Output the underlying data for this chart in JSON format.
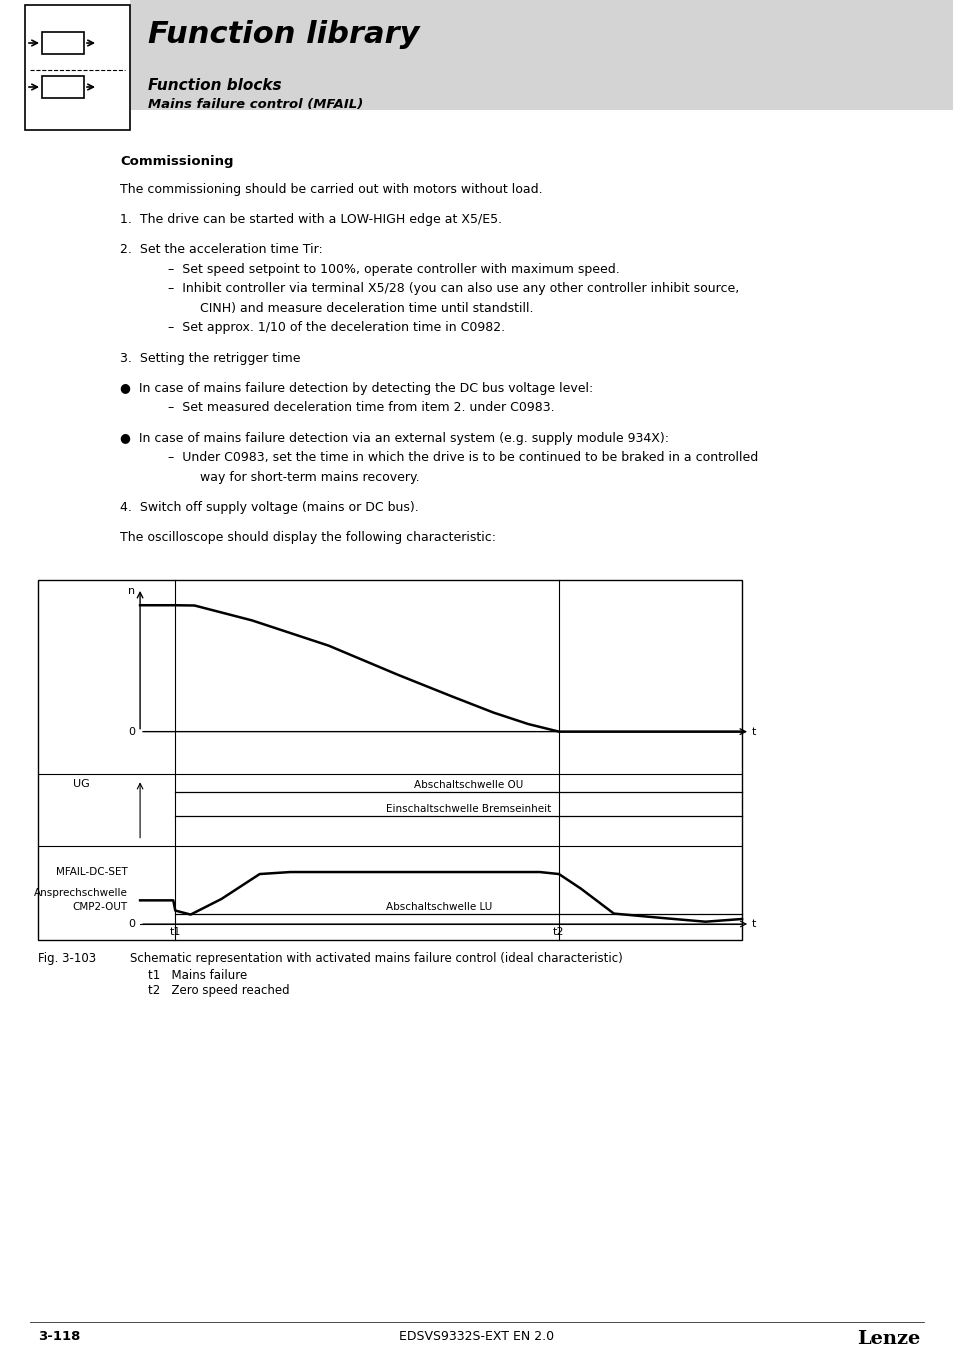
{
  "page_bg": "#ffffff",
  "header_bg": "#d4d4d4",
  "header_title": "Function library",
  "header_sub1": "Function blocks",
  "header_sub2": "Mains failure control (MFAIL)",
  "section_title": "Commissioning",
  "body_lines": [
    {
      "text": "The commissioning should be carried out with motors without load.",
      "indent": 0,
      "extra_space": false
    },
    {
      "text": "",
      "indent": 0,
      "extra_space": false
    },
    {
      "text": "1.  The drive can be started with a LOW-HIGH edge at X5/E5.",
      "indent": 0,
      "extra_space": false
    },
    {
      "text": "",
      "indent": 0,
      "extra_space": false
    },
    {
      "text": "2.  Set the acceleration time Tir:",
      "indent": 0,
      "extra_space": false
    },
    {
      "text": "–  Set speed setpoint to 100%, operate controller with maximum speed.",
      "indent": 1,
      "extra_space": false
    },
    {
      "text": "–  Inhibit controller via terminal X5/28 (you can also use any other controller inhibit source,",
      "indent": 1,
      "extra_space": false
    },
    {
      "text": "   CINH) and measure deceleration time until standstill.",
      "indent": 2,
      "extra_space": false
    },
    {
      "text": "–  Set approx. 1/10 of the deceleration time in C0982.",
      "indent": 1,
      "extra_space": false
    },
    {
      "text": "",
      "indent": 0,
      "extra_space": false
    },
    {
      "text": "3.  Setting the retrigger time",
      "indent": 0,
      "extra_space": false
    },
    {
      "text": "",
      "indent": 0,
      "extra_space": false
    },
    {
      "text": "●  In case of mains failure detection by detecting the DC bus voltage level:",
      "indent": 0,
      "extra_space": false
    },
    {
      "text": "–  Set measured deceleration time from item 2. under C0983.",
      "indent": 1,
      "extra_space": false
    },
    {
      "text": "",
      "indent": 0,
      "extra_space": false
    },
    {
      "text": "●  In case of mains failure detection via an external system (e.g. supply module 934X):",
      "indent": 0,
      "extra_space": false
    },
    {
      "text": "–  Under C0983, set the time in which the drive is to be continued to be braked in a controlled",
      "indent": 1,
      "extra_space": false
    },
    {
      "text": "   way for short-term mains recovery.",
      "indent": 2,
      "extra_space": false
    },
    {
      "text": "",
      "indent": 0,
      "extra_space": false
    },
    {
      "text": "4.  Switch off supply voltage (mains or DC bus).",
      "indent": 0,
      "extra_space": false
    },
    {
      "text": "",
      "indent": 0,
      "extra_space": false
    },
    {
      "text": "The oscilloscope should display the following characteristic:",
      "indent": 0,
      "extra_space": false
    }
  ],
  "fig_caption": "Fig. 3-103",
  "fig_desc": "Schematic representation with activated mains failure control (ideal characteristic)",
  "fig_t1": "t1   Mains failure",
  "fig_t2": "t2   Zero speed reached",
  "footer_left": "3-118",
  "footer_center": "EDSVS9332S-EXT EN 2.0",
  "footer_right": "Lenze"
}
